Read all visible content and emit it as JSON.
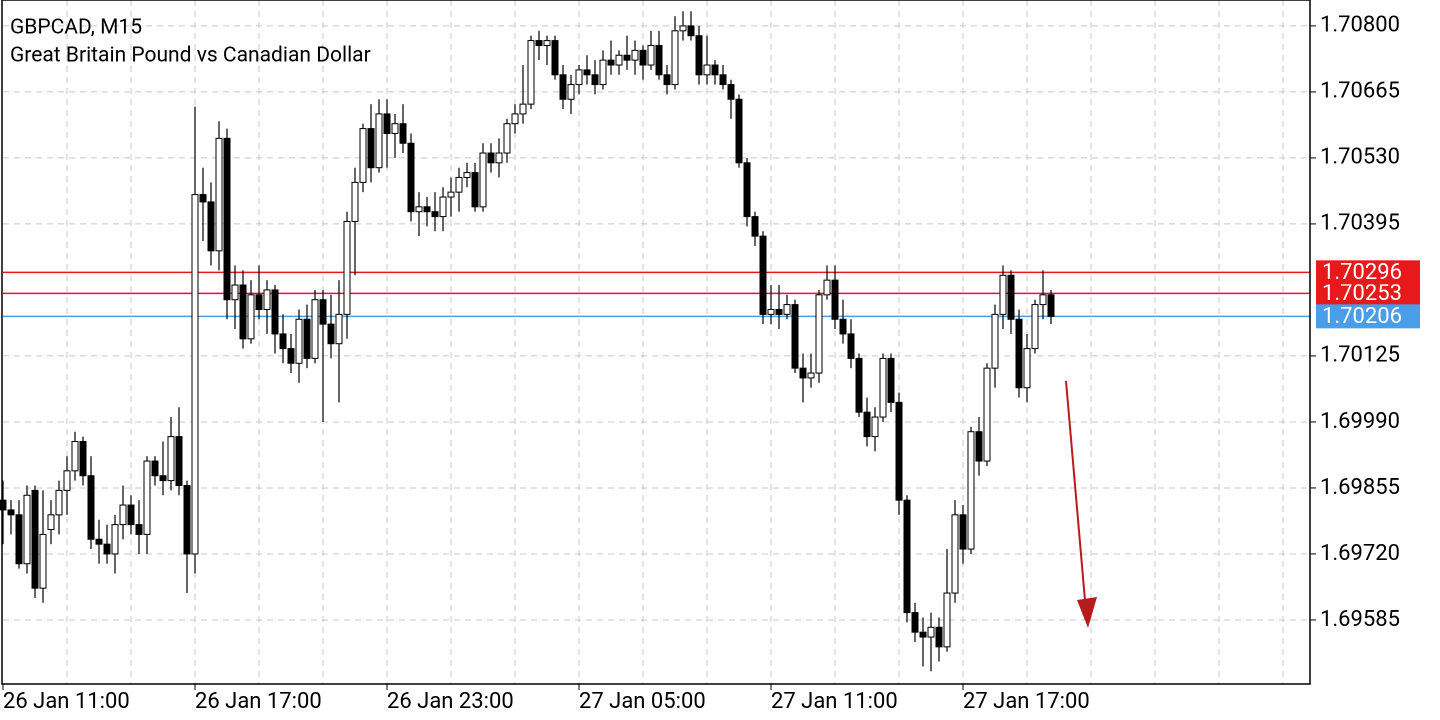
{
  "chart_data": {
    "type": "candlestick",
    "title": "GBPCAD, M15",
    "subtitle": "Great Britain Pound vs Canadian Dollar",
    "categories": [
      "26 Jan 11:00",
      null,
      null,
      null,
      null,
      null,
      null,
      null,
      null,
      null,
      null,
      null,
      null,
      null,
      null,
      null,
      null,
      null,
      null,
      null,
      null,
      null,
      null,
      null,
      "26 Jan 17:00",
      null,
      null,
      null,
      null,
      null,
      null,
      null,
      null,
      null,
      null,
      null,
      null,
      null,
      null,
      null,
      null,
      null,
      null,
      null,
      null,
      null,
      null,
      null,
      "26 Jan 23:00",
      null,
      null,
      null,
      null,
      null,
      null,
      null,
      null,
      null,
      null,
      null,
      null,
      null,
      null,
      null,
      null,
      null,
      null,
      null,
      null,
      null,
      null,
      null,
      "27 Jan 05:00",
      null,
      null,
      null,
      null,
      null,
      null,
      null,
      null,
      null,
      null,
      null,
      null,
      null,
      null,
      null,
      null,
      null,
      null,
      null,
      null,
      null,
      null,
      null,
      "27 Jan 11:00",
      null,
      null,
      null,
      null,
      null,
      null,
      null,
      null,
      null,
      null,
      null,
      null,
      null,
      null,
      null,
      null,
      null,
      null,
      null,
      null,
      null,
      null,
      null,
      "27 Jan 17:00",
      null,
      null,
      null,
      null,
      null,
      null,
      null,
      null,
      null,
      null,
      null
    ],
    "open": [
      1.6983,
      1.6981,
      1.698,
      1.697,
      1.6985,
      1.6965,
      1.6977,
      1.698,
      1.6985,
      1.6989,
      1.6995,
      1.6988,
      1.6975,
      1.6974,
      1.6972,
      1.6978,
      1.6982,
      1.6978,
      1.6976,
      1.6991,
      1.6988,
      1.6987,
      1.6996,
      1.6986,
      1.6972,
      1.70455,
      1.7044,
      1.7034,
      1.7057,
      1.7024,
      1.7027,
      1.7016,
      1.7025,
      1.7022,
      1.7026,
      1.7017,
      1.7014,
      1.7011,
      1.702,
      1.7012,
      1.7024,
      1.7019,
      1.7015,
      1.7021,
      1.704,
      1.7048,
      1.7059,
      1.7051,
      1.7062,
      1.7058,
      1.706,
      1.7056,
      1.7042,
      1.7043,
      1.7042,
      1.7041,
      1.7045,
      1.7046,
      1.7049,
      1.705,
      1.7043,
      1.7054,
      1.7052,
      1.7054,
      1.706,
      1.7062,
      1.7064,
      1.7077,
      1.7076,
      1.7077,
      1.707,
      1.7065,
      1.7068,
      1.7071,
      1.707,
      1.7068,
      1.7073,
      1.7072,
      1.7074,
      1.7073,
      1.7075,
      1.7072,
      1.7076,
      1.707,
      1.7068,
      1.7079,
      1.708,
      1.7078,
      1.707,
      1.7072,
      1.707,
      1.7068,
      1.7065,
      1.7052,
      1.7041,
      1.7037,
      1.7021,
      1.7022,
      1.7021,
      1.7023,
      1.701,
      1.7008,
      1.7009,
      1.7025,
      1.7028,
      1.702,
      1.7017,
      1.7012,
      1.7001,
      1.6996,
      1.7,
      1.7012,
      1.7003,
      1.6983,
      1.696,
      1.6956,
      1.6955,
      1.6957,
      1.6953,
      1.6964,
      1.698,
      1.6973,
      1.6997,
      1.6991,
      1.701,
      1.7021,
      1.7029,
      1.702,
      1.7006,
      1.7014,
      1.7023,
      1.7025
    ],
    "high": [
      1.6987,
      1.6983,
      1.6983,
      1.6986,
      1.6986,
      1.6985,
      1.6983,
      1.6987,
      1.6992,
      1.6997,
      1.6996,
      1.6992,
      1.6979,
      1.6978,
      1.698,
      1.6986,
      1.6984,
      1.6983,
      1.6992,
      1.6992,
      1.6995,
      1.7,
      1.7002,
      1.6987,
      1.70635,
      1.7051,
      1.7048,
      1.70605,
      1.7059,
      1.7031,
      1.703,
      1.7028,
      1.7031,
      1.7028,
      1.7027,
      1.7021,
      1.7017,
      1.7022,
      1.7023,
      1.7026,
      1.7026,
      1.7025,
      1.7028,
      1.7042,
      1.7051,
      1.706,
      1.7064,
      1.7065,
      1.7065,
      1.7062,
      1.7064,
      1.7058,
      1.7046,
      1.7045,
      1.7046,
      1.7047,
      1.7049,
      1.7051,
      1.7052,
      1.7052,
      1.7056,
      1.7056,
      1.7057,
      1.7061,
      1.7064,
      1.7072,
      1.7078,
      1.7079,
      1.7078,
      1.7078,
      1.7072,
      1.707,
      1.7072,
      1.7074,
      1.7073,
      1.7075,
      1.7077,
      1.7075,
      1.7078,
      1.7077,
      1.7076,
      1.7079,
      1.7079,
      1.7072,
      1.7082,
      1.7083,
      1.7083,
      1.708,
      1.7078,
      1.7073,
      1.7072,
      1.7069,
      1.7066,
      1.7053,
      1.7042,
      1.7038,
      1.7027,
      1.7027,
      1.7025,
      1.7024,
      1.7013,
      1.7013,
      1.7026,
      1.7031,
      1.7031,
      1.7024,
      1.702,
      1.7013,
      1.7004,
      1.7002,
      1.7013,
      1.7013,
      1.7005,
      1.6984,
      1.6962,
      1.6959,
      1.696,
      1.6959,
      1.6973,
      1.6983,
      1.6982,
      1.6998,
      1.7,
      1.7011,
      1.7023,
      1.7031,
      1.703,
      1.7022,
      1.7017,
      1.7024,
      1.703,
      1.7026
    ],
    "low": [
      1.6974,
      1.6976,
      1.6969,
      1.6968,
      1.6963,
      1.6962,
      1.6974,
      1.6976,
      1.698,
      1.6987,
      1.6986,
      1.6973,
      1.697,
      1.697,
      1.6968,
      1.6975,
      1.6976,
      1.6972,
      1.6972,
      1.6986,
      1.6984,
      1.6985,
      1.6984,
      1.6964,
      1.6968,
      1.7036,
      1.7031,
      1.703,
      1.702,
      1.7018,
      1.7014,
      1.7015,
      1.702,
      1.7017,
      1.7013,
      1.7011,
      1.7009,
      1.7007,
      1.701,
      1.7011,
      1.6999,
      1.7012,
      1.7003,
      1.7016,
      1.7029,
      1.7046,
      1.7048,
      1.705,
      1.7051,
      1.7053,
      1.7054,
      1.704,
      1.7037,
      1.7039,
      1.7038,
      1.7038,
      1.7041,
      1.7042,
      1.7047,
      1.7042,
      1.7042,
      1.705,
      1.7049,
      1.7052,
      1.7058,
      1.706,
      1.7063,
      1.7073,
      1.7072,
      1.7069,
      1.7063,
      1.7062,
      1.7066,
      1.7068,
      1.7066,
      1.7067,
      1.707,
      1.707,
      1.7071,
      1.707,
      1.7069,
      1.7071,
      1.7069,
      1.7066,
      1.7067,
      1.7077,
      1.7077,
      1.7068,
      1.7068,
      1.7068,
      1.7067,
      1.7061,
      1.7051,
      1.7039,
      1.7035,
      1.7019,
      1.7019,
      1.7018,
      1.702,
      1.7009,
      1.7003,
      1.7006,
      1.7007,
      1.7024,
      1.7018,
      1.7015,
      1.701,
      1.7,
      1.6994,
      1.6993,
      1.6999,
      1.7001,
      1.698,
      1.6958,
      1.6954,
      1.6949,
      1.6948,
      1.695,
      1.6952,
      1.6962,
      1.697,
      1.6972,
      1.6988,
      1.699,
      1.7006,
      1.7018,
      1.7017,
      1.7004,
      1.7003,
      1.7013,
      1.702,
      1.7019
    ],
    "close": [
      1.6981,
      1.698,
      1.697,
      1.6984,
      1.6965,
      1.6976,
      1.698,
      1.6985,
      1.6989,
      1.6995,
      1.6988,
      1.6975,
      1.6974,
      1.6972,
      1.6978,
      1.6982,
      1.6978,
      1.6976,
      1.6991,
      1.6988,
      1.6987,
      1.6996,
      1.6986,
      1.6972,
      1.70455,
      1.7044,
      1.7034,
      1.7057,
      1.7024,
      1.7027,
      1.7016,
      1.7025,
      1.7022,
      1.7026,
      1.7017,
      1.7014,
      1.7011,
      1.702,
      1.7012,
      1.7024,
      1.7019,
      1.7015,
      1.7021,
      1.704,
      1.7048,
      1.7059,
      1.7051,
      1.7062,
      1.7058,
      1.706,
      1.7056,
      1.7042,
      1.7043,
      1.7042,
      1.7041,
      1.7045,
      1.7046,
      1.7049,
      1.705,
      1.7043,
      1.7054,
      1.7052,
      1.7054,
      1.706,
      1.7062,
      1.7064,
      1.7077,
      1.7076,
      1.7077,
      1.707,
      1.7065,
      1.7068,
      1.7071,
      1.707,
      1.7068,
      1.7073,
      1.7072,
      1.7074,
      1.7073,
      1.7075,
      1.7072,
      1.7076,
      1.707,
      1.7068,
      1.7079,
      1.708,
      1.7078,
      1.707,
      1.7072,
      1.707,
      1.7068,
      1.7065,
      1.7052,
      1.7041,
      1.7037,
      1.7021,
      1.7022,
      1.7021,
      1.7023,
      1.701,
      1.7008,
      1.7009,
      1.7025,
      1.7028,
      1.702,
      1.7017,
      1.7012,
      1.7001,
      1.6996,
      1.7,
      1.7012,
      1.7003,
      1.6983,
      1.696,
      1.6956,
      1.6955,
      1.6957,
      1.6953,
      1.6964,
      1.698,
      1.6973,
      1.6997,
      1.6991,
      1.701,
      1.7021,
      1.7029,
      1.702,
      1.7006,
      1.7014,
      1.7023,
      1.7025,
      1.70206
    ],
    "up_color": "#ffffff",
    "down_color": "#000000",
    "ylim": [
      1.69454,
      1.70853
    ],
    "yticks": [
      {
        "value": 1.708,
        "label": "1.70800"
      },
      1.70665,
      {
        "value": 1.7053,
        "label": "1.70530"
      },
      1.70395,
      1.70125,
      {
        "value": 1.6999,
        "label": "1.69990"
      },
      1.69855,
      {
        "value": 1.6972,
        "label": "1.69720"
      },
      1.69585
    ],
    "grid": true,
    "price_lines": [
      {
        "value": 1.70296,
        "color": "#e8191a"
      },
      {
        "value": 1.70253,
        "color": "#e8191a"
      },
      {
        "value": 1.70206,
        "color": "#4a9ee8"
      }
    ]
  }
}
